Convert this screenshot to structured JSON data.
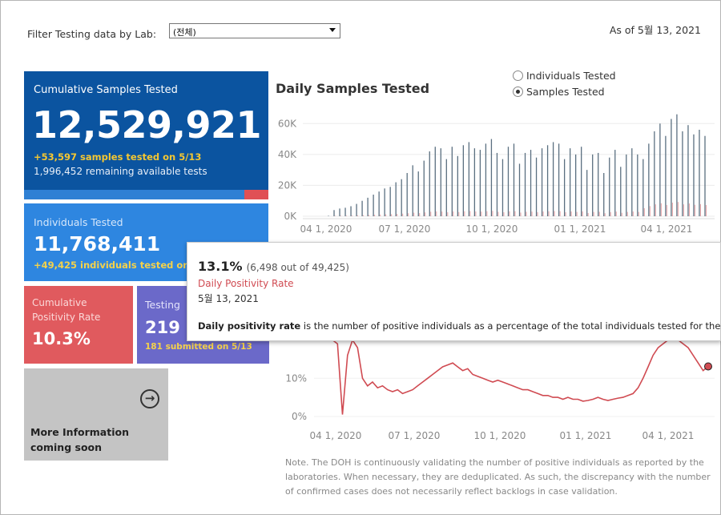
{
  "filter": {
    "label": "Filter Testing data by Lab:",
    "selected": "(전체)"
  },
  "as_of": "As of 5월 13, 2021",
  "cumulative_samples": {
    "title": "Cumulative Samples Tested",
    "value": "12,529,921",
    "tested_today": "+53,597 samples tested on 5/13",
    "remaining": "1,996,452 remaining available tests",
    "used_fraction": 0.9
  },
  "individuals": {
    "title": "Individuals Tested",
    "value": "11,768,411",
    "tested_today": "+49,425 individuals tested on"
  },
  "positivity": {
    "title": "Cumulative Positivity Rate",
    "value": "10.3%"
  },
  "labs": {
    "title": "Testing",
    "value": "219",
    "submitted": "181 submitted on 5/13"
  },
  "more_info": {
    "text": "More Information coming soon"
  },
  "chart_toggle": {
    "option1": "Individuals Tested",
    "option2": "Samples Tested",
    "selected": "Samples Tested"
  },
  "tooltip": {
    "percent": "13.1%",
    "detail": "(6,498 out of  49,425)",
    "metric": "Daily Positivity Rate",
    "date": "5월 13, 2021",
    "definition_bold": "Daily positivity rate",
    "definition_rest": " is the number of positive individuals as a percentage of the total individuals tested for the day"
  },
  "note": "Note. The DOH is continuously validating the number of positive individuals as reported by the laboratories. When necessary, they are deduplicated. As such, the discrepancy with the number of confirmed cases does not necessarily reflect backlogs in case validation.",
  "colors": {
    "cumulative_card": "#0b54a0",
    "individuals_card": "#2e86e0",
    "positivity_card": "#e05a5e",
    "labs_card": "#6b69c9",
    "accent_yellow": "#f5c731",
    "bar_color": "#5a6f80",
    "positive_color": "#d04b52"
  },
  "icons": {
    "more_info": "arrow-right-circle-icon"
  },
  "chart_data": [
    {
      "type": "bar",
      "title": "Daily Samples Tested",
      "x_tick_labels": [
        "04 1, 2020",
        "07 1, 2020",
        "10 1, 2020",
        "01 1, 2021",
        "04 1, 2021"
      ],
      "y_tick_labels": [
        "0K",
        "20K",
        "40K",
        "60K"
      ],
      "ylim": [
        0,
        70000
      ],
      "series": [
        {
          "values": [
            300,
            4000,
            5000,
            5500,
            6500,
            8000,
            10000,
            12000,
            14000,
            16000,
            18000,
            19000,
            22000,
            24000,
            28000,
            33000,
            29000,
            36000,
            42000,
            45000,
            44000,
            37000,
            45000,
            39000,
            46000,
            48000,
            44000,
            43000,
            47000,
            50000,
            41000,
            37000,
            45000,
            47000,
            34000,
            41000,
            43000,
            38000,
            44000,
            46000,
            48000,
            47000,
            37000,
            44000,
            40000,
            45000,
            30000,
            40000,
            41000,
            28000,
            38000,
            43000,
            32000,
            40000,
            44000,
            40000,
            37000,
            47000,
            55000,
            60000,
            52000,
            63000,
            66000,
            55000,
            59000,
            53000,
            56000,
            52000
          ]
        }
      ]
    },
    {
      "type": "line",
      "title": "Daily Positivity Rate",
      "x_tick_labels": [
        "04 1, 2020",
        "07 1, 2020",
        "10 1, 2020",
        "01 1, 2021",
        "04 1, 2021"
      ],
      "y_tick_labels": [
        "0%",
        "10%"
      ],
      "ylim": [
        0,
        22
      ],
      "series": [
        {
          "name": "Daily Positivity Rate",
          "values": [
            20,
            19,
            0.5,
            16,
            20,
            18,
            10,
            8,
            9,
            7.5,
            8,
            7,
            6.5,
            7,
            6,
            6.5,
            7,
            8,
            9,
            10,
            11,
            12,
            13,
            13.5,
            14,
            13,
            12,
            12.5,
            11,
            10.5,
            10,
            9.5,
            9,
            9.5,
            9,
            8.5,
            8,
            7.5,
            7,
            7,
            6.5,
            6,
            5.5,
            5.5,
            5,
            5,
            4.5,
            5,
            4.5,
            4.5,
            4,
            4.2,
            4.5,
            5,
            4.5,
            4.2,
            4.5,
            4.8,
            5,
            5.5,
            6,
            7.5,
            10,
            13,
            16,
            18,
            19,
            20,
            21,
            20,
            19,
            18,
            16,
            14,
            12,
            13.1
          ]
        }
      ]
    }
  ]
}
